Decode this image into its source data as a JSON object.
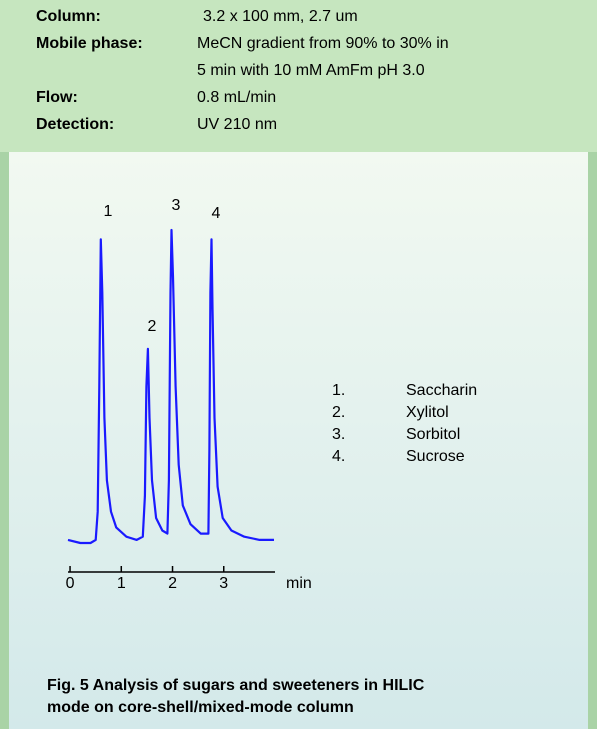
{
  "conditions": [
    {
      "label": "Column:",
      "value": [
        "3.2 x 100 mm,  2.7 um"
      ]
    },
    {
      "label": "Mobile phase:",
      "value": [
        "MeCN gradient from 90% to 30% in",
        "5  min with 10 mM AmFm pH 3.0"
      ]
    },
    {
      "label": "Flow:",
      "value": [
        "0.8 mL/min"
      ]
    },
    {
      "label": "Detection:",
      "value": [
        "UV 210 nm"
      ]
    }
  ],
  "chart_data": {
    "type": "line",
    "xlabel": "min",
    "x": [
      -0.04,
      0.2,
      0.4,
      0.5,
      0.54,
      0.57,
      0.6,
      0.63,
      0.67,
      0.72,
      0.8,
      0.9,
      1.1,
      1.3,
      1.42,
      1.46,
      1.49,
      1.52,
      1.55,
      1.6,
      1.68,
      1.8,
      1.9,
      1.93,
      1.96,
      1.98,
      2.01,
      2.06,
      2.12,
      2.2,
      2.35,
      2.55,
      2.7,
      2.72,
      2.74,
      2.76,
      2.78,
      2.82,
      2.88,
      2.98,
      3.15,
      3.4,
      3.7,
      3.98
    ],
    "series": [
      {
        "color": "#1a1aff",
        "values": [
          1,
          0,
          0,
          1,
          10,
          50,
          97,
          80,
          40,
          20,
          10,
          5,
          2,
          1,
          2,
          15,
          50,
          62,
          40,
          20,
          8,
          4,
          3,
          20,
          80,
          100,
          85,
          50,
          25,
          12,
          6,
          3,
          3,
          30,
          80,
          97,
          75,
          40,
          18,
          8,
          4,
          2,
          1,
          1
        ]
      }
    ],
    "xlim": [
      -0.04,
      4.0
    ],
    "xticks": [
      0,
      1,
      2,
      3
    ],
    "annotations": [
      "1",
      "2",
      "3",
      "4"
    ],
    "legend_items": [
      {
        "number": "1.",
        "name": "Saccharin"
      },
      {
        "number": "2.",
        "name": "Xylitol"
      },
      {
        "number": "3.",
        "name": "Sorbitol"
      },
      {
        "number": "4.",
        "name": "Sucrose"
      }
    ]
  },
  "caption": [
    "Fig. 5 Analysis of sugars and sweeteners in HILIC",
    "mode on core-shell/mixed-mode column"
  ]
}
